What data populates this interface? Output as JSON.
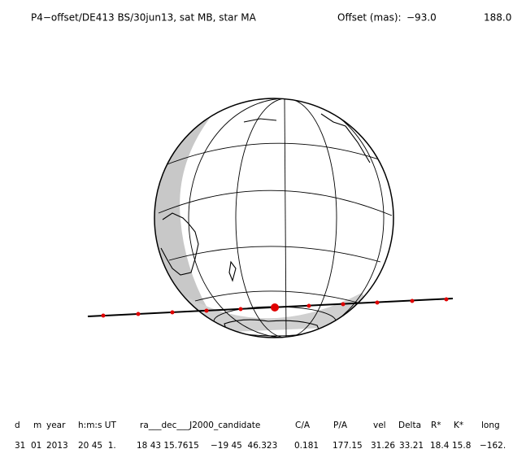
{
  "header": {
    "title": "P4−offset/DE413 BS/30jun13, sat MB, star MA",
    "offset_label": "Offset (mas):",
    "offset_values": [
      "−93.0",
      "188.0"
    ]
  },
  "table": {
    "columns": [
      "d",
      "m",
      "year",
      "h:m:s UT",
      "ra___dec___J2000_candidate",
      "C/A",
      "P/A",
      "vel",
      "Delta",
      "R*",
      "K*",
      "long"
    ],
    "row": [
      "31",
      "01",
      "2013",
      "20 45  1.",
      "18 43 15.7615",
      "−19 45  46.323",
      "0.181",
      "177.15",
      "31.26",
      "33.21",
      "18.4",
      "15.8",
      "−162."
    ]
  }
}
